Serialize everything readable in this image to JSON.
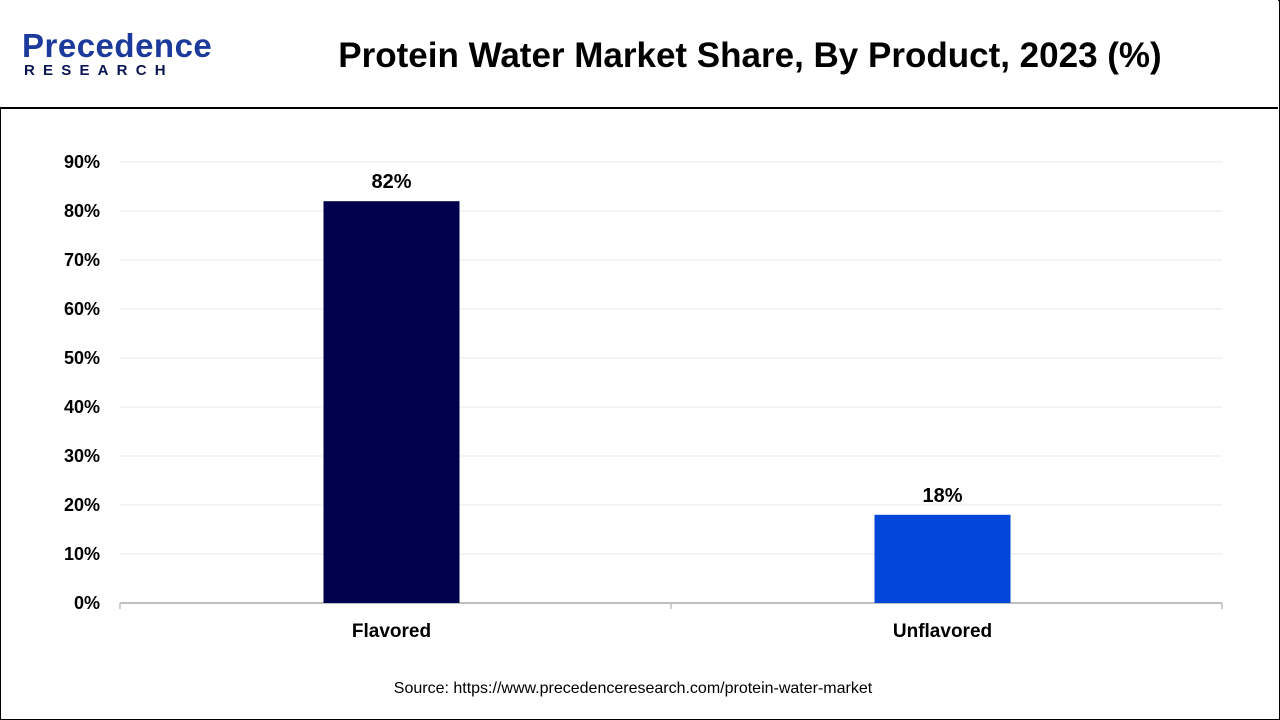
{
  "logo": {
    "name": "Precedence",
    "tagline": "RESEARCH"
  },
  "title": "Protein Water Market Share, By Product, 2023 (%)",
  "source": "Source: https://www.precedenceresearch.com/protein-water-market",
  "colors": {
    "flavored": "#00004d",
    "unflavored": "#0047d9",
    "grid": "#e8e8e8",
    "axis": "#bfbfbf"
  },
  "chart_data": {
    "type": "bar",
    "categories": [
      "Flavored",
      "Unflavored"
    ],
    "values": [
      82,
      18
    ],
    "value_labels": [
      "82%",
      "18%"
    ],
    "title": "Protein Water Market Share, By Product, 2023 (%)",
    "xlabel": "",
    "ylabel": "",
    "ylim": [
      0,
      90
    ],
    "yticks": [
      0,
      10,
      20,
      30,
      40,
      50,
      60,
      70,
      80,
      90
    ],
    "ytick_labels": [
      "0%",
      "10%",
      "20%",
      "30%",
      "40%",
      "50%",
      "60%",
      "70%",
      "80%",
      "90%"
    ],
    "grid": true,
    "legend": "none"
  }
}
